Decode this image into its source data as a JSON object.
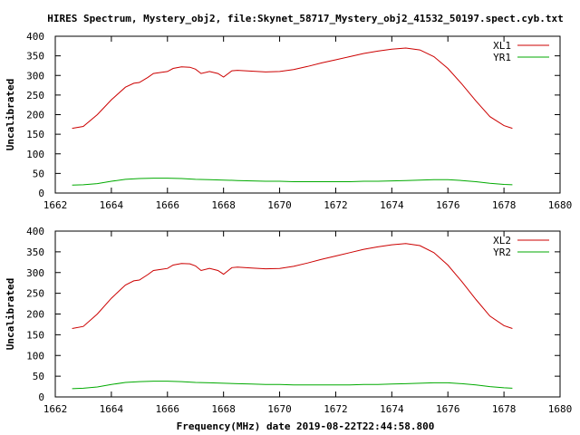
{
  "title": "HIRES Spectrum, Mystery_obj2, file:Skynet_58717_Mystery_obj2_41532_50197.spect.cyb.txt",
  "xlabel_bottom": "Frequency(MHz) date 2019-08-22T22:44:58.800",
  "chart_data": [
    {
      "type": "line",
      "ylabel": "Uncalibrated",
      "xlim": [
        1662,
        1680
      ],
      "ylim": [
        0,
        400
      ],
      "xticks": [
        1662,
        1664,
        1666,
        1668,
        1670,
        1672,
        1674,
        1676,
        1678,
        1680
      ],
      "yticks": [
        0,
        50,
        100,
        150,
        200,
        250,
        300,
        350,
        400
      ],
      "legend_position": "top-right",
      "series": [
        {
          "name": "XL1",
          "color": "#cc0000",
          "x": [
            1662.6,
            1663.0,
            1663.5,
            1664.0,
            1664.5,
            1664.8,
            1665.0,
            1665.3,
            1665.5,
            1665.8,
            1666.0,
            1666.2,
            1666.5,
            1666.8,
            1667.0,
            1667.2,
            1667.5,
            1667.8,
            1668.0,
            1668.3,
            1668.5,
            1669.0,
            1669.5,
            1670.0,
            1670.5,
            1671.0,
            1671.5,
            1672.0,
            1672.5,
            1673.0,
            1673.5,
            1674.0,
            1674.5,
            1675.0,
            1675.5,
            1676.0,
            1676.5,
            1677.0,
            1677.5,
            1678.0,
            1678.3
          ],
          "values": [
            165,
            170,
            200,
            238,
            270,
            280,
            282,
            295,
            305,
            308,
            310,
            318,
            322,
            321,
            316,
            305,
            310,
            305,
            296,
            312,
            313,
            311,
            309,
            310,
            315,
            323,
            332,
            340,
            348,
            356,
            362,
            367,
            370,
            365,
            348,
            318,
            278,
            235,
            195,
            172,
            165
          ]
        },
        {
          "name": "YR1",
          "color": "#00aa00",
          "x": [
            1662.6,
            1663.0,
            1663.5,
            1664.0,
            1664.5,
            1665.0,
            1665.5,
            1666.0,
            1666.5,
            1667.0,
            1667.5,
            1668.0,
            1668.5,
            1669.0,
            1669.5,
            1670.0,
            1670.5,
            1671.0,
            1671.5,
            1672.0,
            1672.5,
            1673.0,
            1673.5,
            1674.0,
            1674.5,
            1675.0,
            1675.5,
            1676.0,
            1676.5,
            1677.0,
            1677.5,
            1678.0,
            1678.3
          ],
          "values": [
            20,
            21,
            24,
            30,
            35,
            37,
            38,
            38,
            37,
            35,
            34,
            33,
            32,
            31,
            30,
            30,
            29,
            29,
            29,
            29,
            29,
            30,
            30,
            31,
            32,
            33,
            34,
            34,
            32,
            29,
            25,
            22,
            21
          ]
        }
      ]
    },
    {
      "type": "line",
      "ylabel": "Uncalibrated",
      "xlim": [
        1662,
        1680
      ],
      "ylim": [
        0,
        400
      ],
      "xticks": [
        1662,
        1664,
        1666,
        1668,
        1670,
        1672,
        1674,
        1676,
        1678,
        1680
      ],
      "yticks": [
        0,
        50,
        100,
        150,
        200,
        250,
        300,
        350,
        400
      ],
      "legend_position": "top-right",
      "series": [
        {
          "name": "XL2",
          "color": "#cc0000",
          "x": [
            1662.6,
            1663.0,
            1663.5,
            1664.0,
            1664.5,
            1664.8,
            1665.0,
            1665.3,
            1665.5,
            1665.8,
            1666.0,
            1666.2,
            1666.5,
            1666.8,
            1667.0,
            1667.2,
            1667.5,
            1667.8,
            1668.0,
            1668.3,
            1668.5,
            1669.0,
            1669.5,
            1670.0,
            1670.5,
            1671.0,
            1671.5,
            1672.0,
            1672.5,
            1673.0,
            1673.5,
            1674.0,
            1674.5,
            1675.0,
            1675.5,
            1676.0,
            1676.5,
            1677.0,
            1677.5,
            1678.0,
            1678.3
          ],
          "values": [
            165,
            170,
            200,
            238,
            270,
            280,
            282,
            295,
            305,
            308,
            310,
            318,
            322,
            321,
            316,
            305,
            310,
            305,
            296,
            312,
            313,
            311,
            309,
            310,
            315,
            323,
            332,
            340,
            348,
            356,
            362,
            367,
            370,
            365,
            348,
            318,
            278,
            235,
            195,
            172,
            165
          ]
        },
        {
          "name": "YR2",
          "color": "#00aa00",
          "x": [
            1662.6,
            1663.0,
            1663.5,
            1664.0,
            1664.5,
            1665.0,
            1665.5,
            1666.0,
            1666.5,
            1667.0,
            1667.5,
            1668.0,
            1668.5,
            1669.0,
            1669.5,
            1670.0,
            1670.5,
            1671.0,
            1671.5,
            1672.0,
            1672.5,
            1673.0,
            1673.5,
            1674.0,
            1674.5,
            1675.0,
            1675.5,
            1676.0,
            1676.5,
            1677.0,
            1677.5,
            1678.0,
            1678.3
          ],
          "values": [
            20,
            21,
            24,
            30,
            35,
            37,
            38,
            38,
            37,
            35,
            34,
            33,
            32,
            31,
            30,
            30,
            29,
            29,
            29,
            29,
            29,
            30,
            30,
            31,
            32,
            33,
            34,
            34,
            32,
            29,
            25,
            22,
            21
          ]
        }
      ]
    }
  ]
}
